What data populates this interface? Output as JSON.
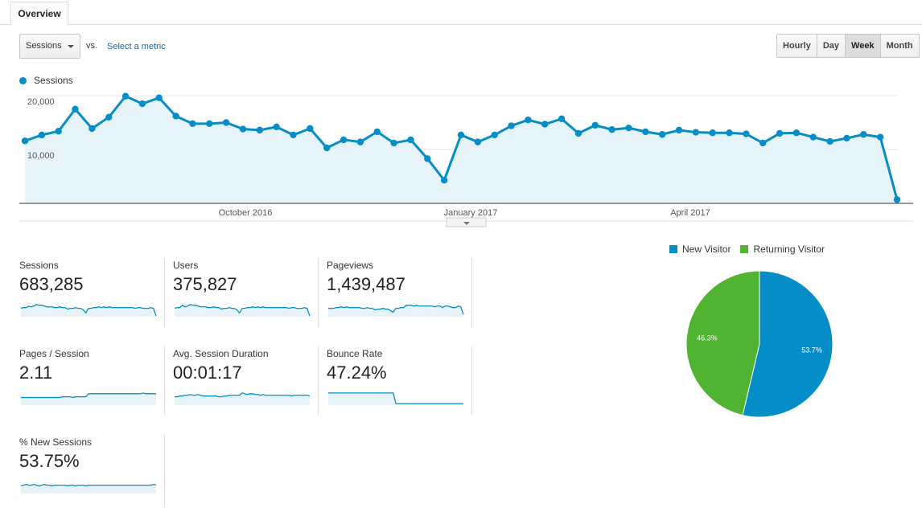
{
  "tab": {
    "label": "Overview"
  },
  "controls": {
    "metric_select": "Sessions",
    "vs_label": "vs.",
    "select_metric_link": "Select a metric",
    "granularity": [
      "Hourly",
      "Day",
      "Week",
      "Month"
    ],
    "granularity_selected": "Week"
  },
  "colors": {
    "accent": "#058dc7",
    "fill": "#e6f4fa",
    "returning": "#50b432",
    "new": "#058dc7"
  },
  "chart_data": [
    {
      "type": "line",
      "title": "",
      "legend": "Sessions",
      "y_ticks": [
        "20,000",
        "10,000"
      ],
      "ylim": [
        0,
        20000
      ],
      "x_labels": [
        "October 2016",
        "January 2017",
        "April 2017"
      ],
      "series": [
        {
          "name": "Sessions",
          "values": [
            11600,
            12700,
            13400,
            17500,
            13900,
            16000,
            19900,
            18500,
            19600,
            16200,
            14800,
            14800,
            15000,
            13800,
            13600,
            14200,
            12700,
            13900,
            10300,
            11800,
            11400,
            13300,
            11200,
            11800,
            8300,
            4300,
            12700,
            11400,
            12700,
            14400,
            15500,
            14700,
            15700,
            13000,
            14500,
            13700,
            14000,
            13300,
            12800,
            13600,
            13200,
            13100,
            13100,
            12900,
            11200,
            13000,
            13100,
            12300,
            11500,
            12100,
            12800,
            12300,
            700
          ]
        }
      ]
    },
    {
      "type": "pie",
      "legend": [
        "New Visitor",
        "Returning Visitor"
      ],
      "slices": [
        {
          "label": "New Visitor",
          "value": 53.7,
          "text": "53.7%"
        },
        {
          "label": "Returning Visitor",
          "value": 46.3,
          "text": "46.3%"
        }
      ]
    }
  ],
  "scorecards": [
    {
      "label": "Sessions",
      "value": "683,285",
      "spark": [
        11,
        12,
        12,
        14,
        13,
        14,
        16,
        15,
        15,
        14,
        13,
        13,
        13,
        12,
        12,
        13,
        12,
        12,
        10,
        11,
        11,
        12,
        11,
        11,
        9,
        5,
        11,
        11,
        12,
        12,
        13,
        12,
        13,
        12,
        13,
        12,
        12,
        12,
        12,
        12,
        12,
        12,
        12,
        12,
        11,
        12,
        12,
        11,
        11,
        11,
        12,
        11,
        1
      ]
    },
    {
      "label": "Users",
      "value": "375,827",
      "spark": [
        11,
        12,
        12,
        15,
        13,
        14,
        16,
        15,
        15,
        14,
        13,
        13,
        13,
        12,
        12,
        13,
        12,
        12,
        10,
        11,
        11,
        12,
        11,
        11,
        9,
        5,
        11,
        11,
        12,
        12,
        13,
        12,
        13,
        12,
        13,
        12,
        12,
        12,
        12,
        12,
        12,
        12,
        12,
        12,
        11,
        12,
        12,
        11,
        11,
        11,
        12,
        11,
        1
      ]
    },
    {
      "label": "Pageviews",
      "value": "1,439,487",
      "spark": [
        11,
        11,
        11,
        12,
        12,
        13,
        12,
        13,
        12,
        12,
        12,
        12,
        12,
        11,
        11,
        12,
        11,
        11,
        9,
        10,
        10,
        11,
        10,
        10,
        8,
        6,
        11,
        11,
        12,
        12,
        15,
        15,
        15,
        14,
        15,
        14,
        14,
        14,
        14,
        14,
        14,
        13,
        14,
        14,
        12,
        14,
        14,
        13,
        12,
        12,
        14,
        13,
        3
      ]
    },
    {
      "label": "Pages / Session",
      "value": "2.11",
      "spark": [
        10,
        10,
        10,
        10,
        10,
        10,
        10,
        10,
        10,
        10,
        10,
        10,
        10,
        10,
        10,
        10,
        11,
        11,
        11,
        11,
        10,
        11,
        11,
        11,
        11,
        11,
        15,
        15,
        15,
        15,
        15,
        15,
        15,
        15,
        15,
        15,
        15,
        15,
        15,
        15,
        15,
        15,
        15,
        15,
        15,
        15,
        15,
        16,
        15,
        15,
        15,
        15,
        15
      ]
    },
    {
      "label": "Avg. Session Duration",
      "value": "00:01:17",
      "spark": [
        11,
        11,
        12,
        12,
        13,
        13,
        14,
        13,
        13,
        14,
        13,
        12,
        12,
        12,
        12,
        12,
        12,
        11,
        11,
        12,
        12,
        13,
        13,
        13,
        13,
        13,
        16,
        15,
        14,
        15,
        15,
        14,
        14,
        13,
        14,
        13,
        13,
        13,
        13,
        13,
        13,
        13,
        13,
        13,
        13,
        12,
        13,
        13,
        13,
        13,
        13,
        13,
        12
      ]
    },
    {
      "label": "Bounce Rate",
      "value": "47.24%",
      "spark": [
        16,
        16,
        16,
        16,
        16,
        16,
        16,
        16,
        16,
        16,
        16,
        16,
        16,
        16,
        16,
        16,
        16,
        16,
        16,
        16,
        16,
        16,
        16,
        16,
        16,
        16,
        2,
        2,
        2,
        2,
        2,
        2,
        2,
        2,
        2,
        2,
        2,
        2,
        2,
        2,
        2,
        2,
        2,
        2,
        2,
        2,
        2,
        2,
        2,
        2,
        2,
        2,
        2
      ]
    },
    {
      "label": "% New Sessions",
      "value": "53.75%",
      "spark": [
        10,
        11,
        12,
        11,
        11,
        12,
        11,
        10,
        11,
        12,
        11,
        11,
        10,
        11,
        11,
        11,
        11,
        11,
        10,
        11,
        11,
        10,
        11,
        11,
        11,
        10,
        11,
        11,
        11,
        11,
        11,
        11,
        11,
        11,
        11,
        11,
        11,
        11,
        11,
        11,
        11,
        11,
        11,
        11,
        11,
        11,
        11,
        11,
        11,
        11,
        11,
        12,
        11
      ]
    }
  ]
}
